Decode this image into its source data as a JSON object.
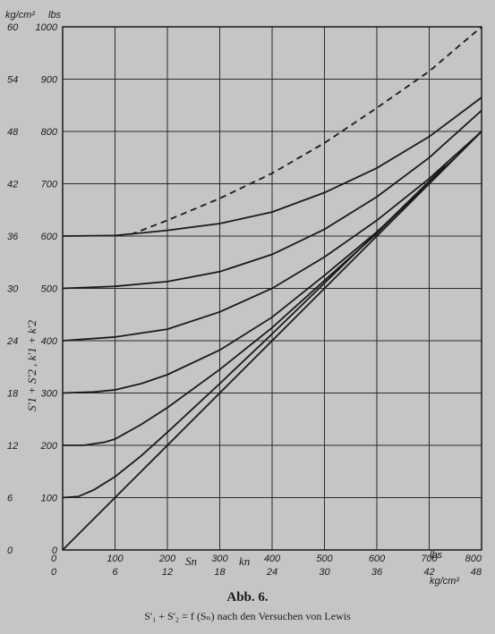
{
  "chart_data": {
    "type": "line",
    "x": {
      "range": [
        0,
        800
      ],
      "ticks": [
        "0",
        "100",
        "200",
        "300",
        "400",
        "500",
        "600",
        "700",
        "800"
      ],
      "secondary_ticks": [
        "0",
        "6",
        "12",
        "18",
        "24",
        "30",
        "36",
        "42",
        "48"
      ],
      "unit_primary": "lbs",
      "unit_secondary": "kg/cm²",
      "symbol_1": "Sn",
      "symbol_2": "kn"
    },
    "y": {
      "range": [
        0,
        1000
      ],
      "ticks": [
        "0",
        "100",
        "200",
        "300",
        "400",
        "500",
        "600",
        "700",
        "800",
        "900",
        "1000"
      ],
      "secondary_ticks": [
        "0",
        "6",
        "12",
        "18",
        "24",
        "30",
        "36",
        "42",
        "48",
        "54",
        "60"
      ],
      "unit_primary": "lbs",
      "unit_secondary": "kg/cm²",
      "label": "S'1 + S'2 , k'1 + k'2"
    },
    "grid": true,
    "series": [
      {
        "style": "solid",
        "points": [
          [
            0,
            0
          ],
          [
            800,
            800
          ]
        ]
      },
      {
        "style": "solid",
        "points": [
          [
            0,
            100
          ],
          [
            30,
            102
          ],
          [
            60,
            115
          ],
          [
            100,
            140
          ],
          [
            150,
            180
          ],
          [
            200,
            225
          ],
          [
            300,
            318
          ],
          [
            400,
            413
          ],
          [
            500,
            510
          ],
          [
            600,
            607
          ],
          [
            700,
            705
          ],
          [
            730,
            735
          ]
        ]
      },
      {
        "style": "solid",
        "points": [
          [
            0,
            200
          ],
          [
            40,
            200
          ],
          [
            80,
            206
          ],
          [
            100,
            212
          ],
          [
            150,
            240
          ],
          [
            200,
            272
          ],
          [
            300,
            345
          ],
          [
            400,
            425
          ],
          [
            500,
            515
          ],
          [
            600,
            605
          ],
          [
            700,
            705
          ],
          [
            750,
            750
          ]
        ]
      },
      {
        "style": "solid",
        "points": [
          [
            0,
            300
          ],
          [
            60,
            302
          ],
          [
            100,
            306
          ],
          [
            150,
            318
          ],
          [
            200,
            335
          ],
          [
            300,
            382
          ],
          [
            400,
            445
          ],
          [
            500,
            525
          ],
          [
            600,
            608
          ],
          [
            700,
            700
          ],
          [
            800,
            800
          ]
        ]
      },
      {
        "style": "solid",
        "points": [
          [
            0,
            400
          ],
          [
            100,
            407
          ],
          [
            200,
            422
          ],
          [
            300,
            455
          ],
          [
            400,
            500
          ],
          [
            500,
            560
          ],
          [
            600,
            630
          ],
          [
            700,
            710
          ],
          [
            800,
            800
          ]
        ]
      },
      {
        "style": "solid",
        "points": [
          [
            0,
            500
          ],
          [
            100,
            504
          ],
          [
            200,
            513
          ],
          [
            300,
            532
          ],
          [
            400,
            565
          ],
          [
            500,
            613
          ],
          [
            600,
            675
          ],
          [
            700,
            750
          ],
          [
            800,
            840
          ]
        ]
      },
      {
        "style": "solid",
        "points": [
          [
            0,
            600
          ],
          [
            100,
            601
          ],
          [
            200,
            611
          ],
          [
            300,
            624
          ],
          [
            400,
            646
          ],
          [
            500,
            683
          ],
          [
            600,
            730
          ],
          [
            700,
            790
          ],
          [
            800,
            865
          ]
        ]
      },
      {
        "style": "dashed",
        "points": [
          [
            130,
            603
          ],
          [
            200,
            630
          ],
          [
            300,
            672
          ],
          [
            400,
            720
          ],
          [
            500,
            778
          ],
          [
            600,
            845
          ],
          [
            700,
            915
          ],
          [
            800,
            1000
          ]
        ]
      }
    ]
  },
  "caption": {
    "title": "Abb. 6.",
    "subtitle": "S'₁ + S'₂ = f (Sₙ) nach den Versuchen von Lewis"
  }
}
